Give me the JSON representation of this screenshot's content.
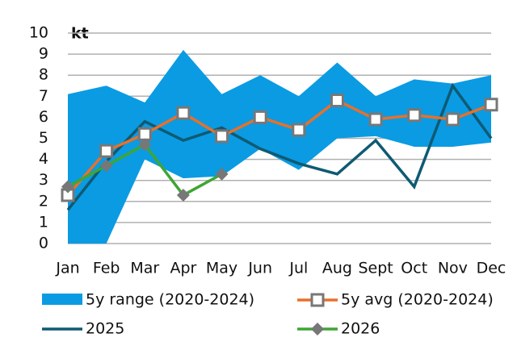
{
  "chart_data": {
    "type": "line",
    "unit": "kt",
    "categories": [
      "Jan",
      "Feb",
      "Mar",
      "Apr",
      "May",
      "Jun",
      "Jul",
      "Aug",
      "Sept",
      "Oct",
      "Nov",
      "Dec"
    ],
    "ylim": [
      0,
      10
    ],
    "yticks": [
      0,
      1,
      2,
      3,
      4,
      5,
      6,
      7,
      8,
      9,
      10
    ],
    "grid": true,
    "range": {
      "name": "5y range (2020-2024)",
      "color": "#0a9be3",
      "low": [
        0,
        0,
        4.0,
        3.1,
        3.2,
        4.5,
        3.5,
        5.0,
        5.1,
        4.6,
        4.6,
        4.8
      ],
      "high": [
        7.1,
        7.5,
        6.7,
        9.2,
        7.1,
        8.0,
        7.0,
        8.6,
        7.0,
        7.8,
        7.6,
        8.0
      ]
    },
    "series": [
      {
        "name": "5y avg (2020-2024)",
        "color": "#e8702a",
        "marker": "square",
        "values": [
          2.3,
          4.4,
          5.2,
          6.2,
          5.1,
          6.0,
          5.4,
          6.8,
          5.9,
          6.1,
          5.9,
          6.6
        ]
      },
      {
        "name": "2025",
        "color": "#0f5a73",
        "marker": "none",
        "values": [
          1.6,
          3.9,
          5.8,
          4.9,
          5.5,
          4.5,
          3.8,
          3.3,
          4.9,
          2.7,
          7.5,
          5.0
        ]
      },
      {
        "name": "2026",
        "color": "#3fa535",
        "marker": "diamond",
        "values": [
          2.7,
          3.7,
          4.7,
          2.3,
          3.3,
          null,
          null,
          null,
          null,
          null,
          null,
          null
        ]
      }
    ]
  }
}
